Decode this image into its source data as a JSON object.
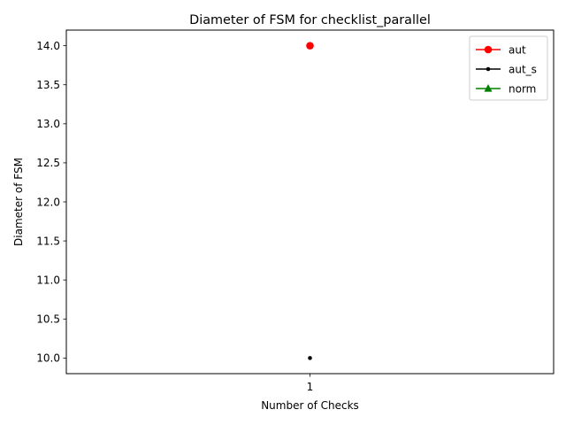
{
  "chart_data": {
    "type": "line",
    "title": "Diameter of FSM for checklist_parallel",
    "xlabel": "Number of Checks",
    "ylabel": "Diameter of FSM",
    "x": [
      1
    ],
    "xticks": [
      "1"
    ],
    "xlim": [
      0.945,
      1.055
    ],
    "ylim": [
      9.8,
      14.2
    ],
    "yticks": [
      "10.0",
      "10.5",
      "11.0",
      "11.5",
      "12.0",
      "12.5",
      "13.0",
      "13.5",
      "14.0"
    ],
    "grid": false,
    "legend_position": "top-right",
    "series": [
      {
        "name": "aut",
        "values": [
          14
        ],
        "color": "#ff0000",
        "marker": "circle-large"
      },
      {
        "name": "aut_s",
        "values": [
          10
        ],
        "color": "#000000",
        "marker": "circle-small"
      },
      {
        "name": "norm",
        "values": [
          null
        ],
        "color": "#008000",
        "marker": "triangle"
      }
    ]
  }
}
